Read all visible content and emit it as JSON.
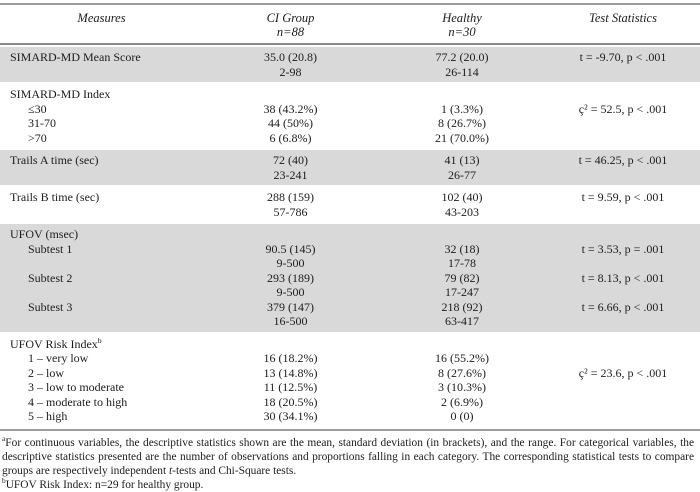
{
  "colors": {
    "shaded_row": "#d9d9d9",
    "rule": "#9c9c9c",
    "text": "#1c1c1c",
    "background": "#ffffff"
  },
  "table": {
    "columns": [
      {
        "label": "Measures",
        "sub": ""
      },
      {
        "label": "CI Group",
        "sub": "n=88"
      },
      {
        "label": "Healthy",
        "sub": "n=30"
      },
      {
        "label": "Test Statistics",
        "sub": ""
      }
    ],
    "sections": [
      {
        "shaded": true,
        "rows": [
          {
            "measure": "SIMARD-MD Mean Score",
            "ci": [
              "35.0 (20.8)",
              "2-98"
            ],
            "healthy": [
              "77.2 (20.0)",
              "26-114"
            ],
            "test": "t = -9.70, p < .001"
          }
        ]
      },
      {
        "shaded": false,
        "rows": [
          {
            "measure": "SIMARD-MD Index"
          },
          {
            "measure": "≤30",
            "indent": true,
            "ci": [
              "38 (43.2%)"
            ],
            "healthy": [
              "1 (3.3%)"
            ],
            "test": "ç² = 52.5, p < .001"
          },
          {
            "measure": "31-70",
            "indent": true,
            "ci": [
              "44 (50%)"
            ],
            "healthy": [
              "8 (26.7%)"
            ]
          },
          {
            "measure": ">70",
            "indent": true,
            "ci": [
              "6 (6.8%)"
            ],
            "healthy": [
              "21 (70.0%)"
            ]
          }
        ]
      },
      {
        "shaded": true,
        "rows": [
          {
            "measure": "Trails A time (sec)",
            "ci": [
              "72 (40)",
              "23-241"
            ],
            "healthy": [
              "41 (13)",
              "26-77"
            ],
            "test": "t = 46.25, p < .001"
          }
        ]
      },
      {
        "shaded": false,
        "rows": [
          {
            "measure": "Trails B time (sec)",
            "ci": [
              "288 (159)",
              "57-786"
            ],
            "healthy": [
              "102 (40)",
              "43-203"
            ],
            "test": "t = 9.59, p < .001"
          }
        ]
      },
      {
        "shaded": true,
        "rows": [
          {
            "measure": "UFOV (msec)"
          },
          {
            "measure": "Subtest 1",
            "indent": true,
            "ci": [
              "90.5 (145)",
              "9-500"
            ],
            "healthy": [
              "32 (18)",
              "17-78"
            ],
            "test": "t = 3.53, p = .001"
          },
          {
            "measure": "Subtest 2",
            "indent": true,
            "ci": [
              "293 (189)",
              "9-500"
            ],
            "healthy": [
              "79 (82)",
              "17-247"
            ],
            "test": "t = 8.13, p < .001"
          },
          {
            "measure": "Subtest 3",
            "indent": true,
            "ci": [
              "379 (147)",
              "16-500"
            ],
            "healthy": [
              "218 (92)",
              "63-417"
            ],
            "test": "t = 6.66, p < .001"
          }
        ]
      },
      {
        "shaded": false,
        "rows": [
          {
            "measure": "UFOV Risk Index",
            "sup": "b"
          },
          {
            "measure": "1 – very low",
            "indent": true,
            "ci": [
              "16 (18.2%)"
            ],
            "healthy": [
              "16 (55.2%)"
            ]
          },
          {
            "measure": "2 – low",
            "indent": true,
            "ci": [
              "13 (14.8%)"
            ],
            "healthy": [
              "8 (27.6%)"
            ],
            "test": "ç² = 23.6, p < .001"
          },
          {
            "measure": "3 – low to moderate",
            "indent": true,
            "ci": [
              "11 (12.5%)"
            ],
            "healthy": [
              "3 (10.3%)"
            ]
          },
          {
            "measure": "4 – moderate to high",
            "indent": true,
            "ci": [
              "18 (20.5%)"
            ],
            "healthy": [
              "2 (6.9%)"
            ]
          },
          {
            "measure": "5 – high",
            "indent": true,
            "ci": [
              "30 (34.1%)"
            ],
            "healthy": [
              "0 (0)"
            ]
          }
        ]
      }
    ]
  },
  "footnotes": {
    "a_marker": "a",
    "a_pre": "For continuous variables, the descriptive statistics shown are the mean, standard deviation (in brackets), and the range. For categorical variables, the descriptive statistics presented are the number of observations and proportions falling in each category. The corresponding statistical tests to compare groups are respectively independent ",
    "a_italic": "t",
    "a_post": "-tests and Chi-Square tests.",
    "b_marker": "b",
    "b_text": "UFOV Risk Index: n=29 for healthy group."
  }
}
